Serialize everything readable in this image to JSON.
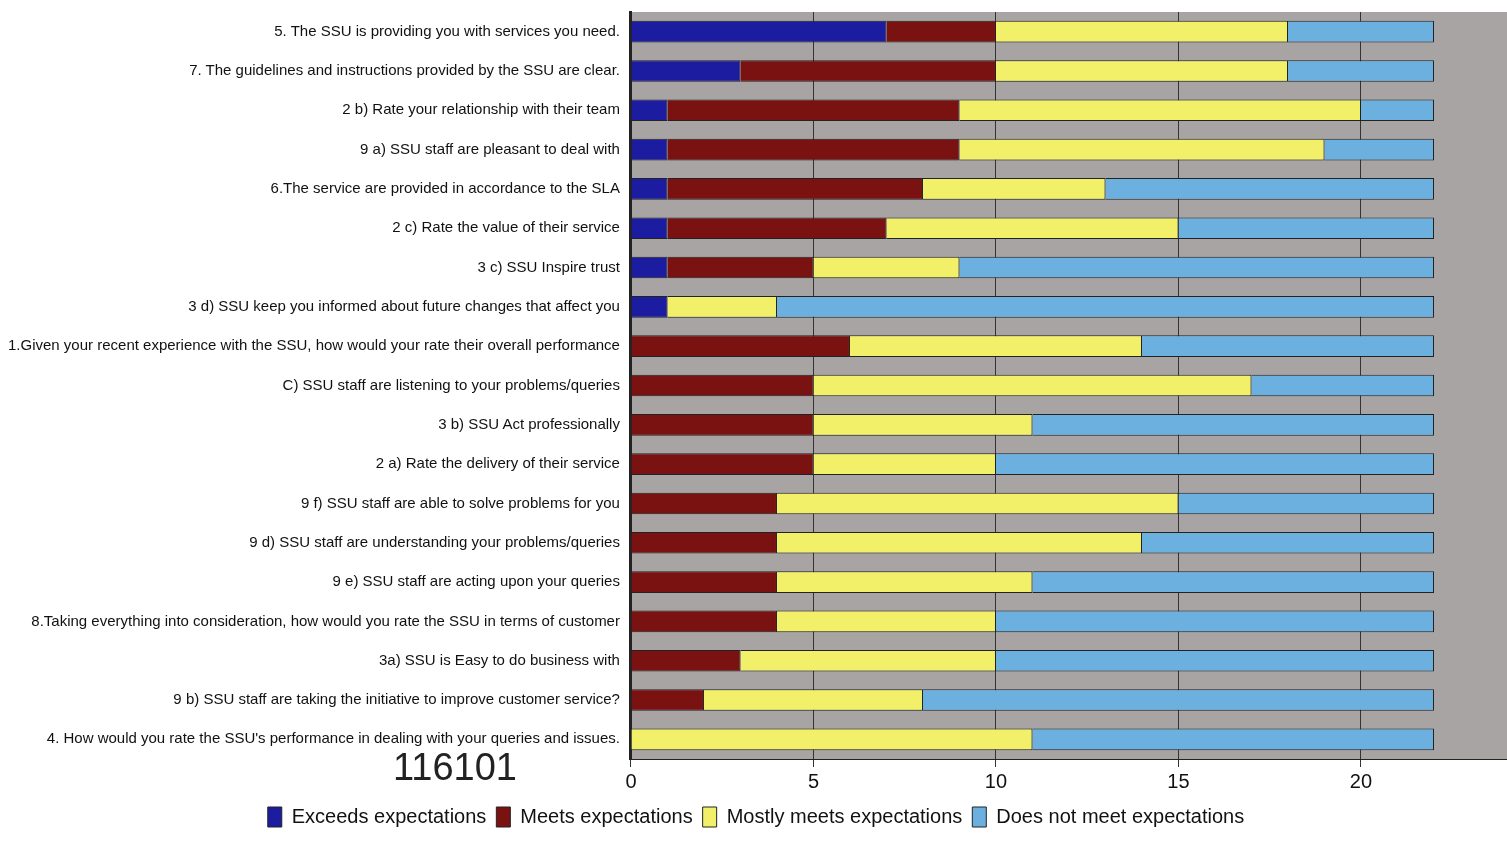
{
  "chart_data": {
    "type": "bar",
    "orientation": "horizontal",
    "stacked": true,
    "categories": [
      "5. The SSU is providing you with services you need.",
      "7. The guidelines and instructions provided by the SSU are clear.",
      "2 b) Rate your relationship with their team",
      "9 a) SSU staff are pleasant to deal with",
      "6.The service are provided in accordance to the SLA",
      "2 c) Rate the value of their service",
      "3 c) SSU Inspire trust",
      "3 d) SSU keep you informed about future changes that affect you",
      "1.Given your recent experience with the SSU, how would your rate their overall performance",
      "C) SSU staff are listening to your problems/queries",
      "3 b) SSU Act professionally",
      "2 a) Rate the delivery of their service",
      "9 f) SSU staff are able to solve problems for you",
      "9 d) SSU staff are understanding your problems/queries",
      "9 e) SSU staff are acting upon your queries",
      "8.Taking everything into consideration, how would you rate the SSU in terms of customer",
      "3a) SSU is Easy to do business with",
      "9 b) SSU staff are taking the initiative to improve customer service?",
      "4. How would you rate the SSU's performance in dealing with your queries and issues."
    ],
    "series": [
      {
        "name": "Exceeds expectations",
        "color": "#1c1ca0",
        "values": [
          7,
          3,
          1,
          1,
          1,
          1,
          1,
          1,
          0,
          0,
          0,
          0,
          0,
          0,
          0,
          0,
          0,
          0,
          0
        ]
      },
      {
        "name": "Meets expectations",
        "color": "#7a1212",
        "values": [
          3,
          7,
          8,
          8,
          7,
          6,
          4,
          0,
          6,
          5,
          5,
          5,
          4,
          4,
          4,
          4,
          3,
          2,
          0
        ]
      },
      {
        "name": "Mostly meets expectations",
        "color": "#f2f068",
        "values": [
          8,
          8,
          11,
          10,
          5,
          8,
          4,
          3,
          8,
          12,
          6,
          5,
          11,
          10,
          7,
          6,
          7,
          6,
          11
        ]
      },
      {
        "name": "Does not meet expectations",
        "color": "#6cb0e0",
        "values": [
          4,
          4,
          2,
          3,
          9,
          7,
          13,
          18,
          8,
          5,
          11,
          12,
          7,
          8,
          11,
          12,
          12,
          14,
          11
        ]
      }
    ],
    "xlim": [
      0,
      24
    ],
    "xticks": [
      0,
      5,
      10,
      15,
      20
    ],
    "grid": "x",
    "legend": "bottom",
    "annotations": [
      "116101"
    ]
  }
}
